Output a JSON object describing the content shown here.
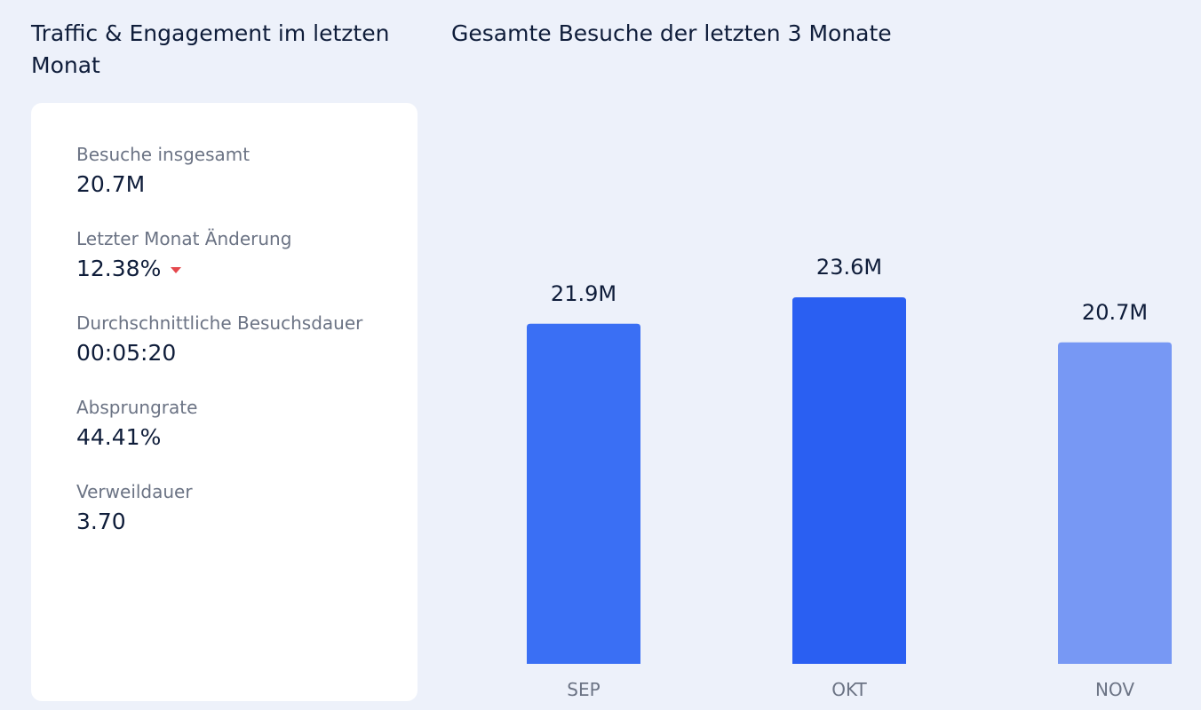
{
  "left_panel": {
    "title": "Traffic & Engagement im letzten Monat",
    "metrics": [
      {
        "label": "Besuche insgesamt",
        "value": "20.7M"
      },
      {
        "label": "Letzter Monat Änderung",
        "value": "12.38%",
        "trend": "down",
        "trend_icon": "caret-down-icon"
      },
      {
        "label": "Durchschnittliche Besuchsdauer",
        "value": "00:05:20"
      },
      {
        "label": "Absprungrate",
        "value": "44.41%"
      },
      {
        "label": "Verweildauer",
        "value": "3.70"
      }
    ]
  },
  "colors": {
    "trend_down": "#e5484d",
    "bar_sep": "#3a6ff4",
    "bar_okt": "#2a5ff2",
    "bar_nov": "#7798f4"
  },
  "chart_data": {
    "type": "bar",
    "title": "Gesamte Besuche der letzten 3 Monate",
    "categories": [
      "SEP",
      "OKT",
      "NOV"
    ],
    "values": [
      21.9,
      23.6,
      20.7
    ],
    "data_labels": [
      "21.9M",
      "23.6M",
      "20.7M"
    ],
    "colors": [
      "#3a6ff4",
      "#2a5ff2",
      "#7798f4"
    ],
    "ylim": [
      0,
      23.6
    ],
    "grid": false,
    "xlabel": "",
    "ylabel": ""
  }
}
